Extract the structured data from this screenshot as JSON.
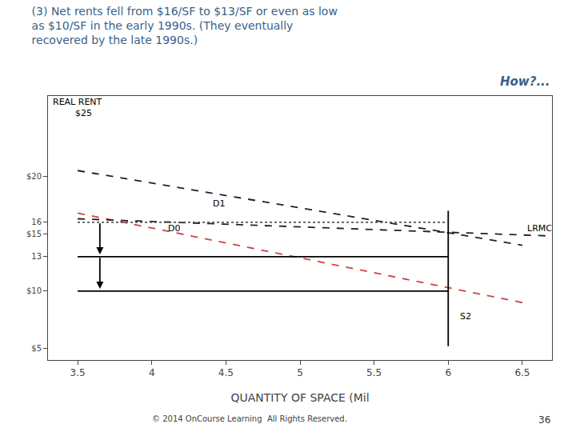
{
  "chart_data": {
    "type": "line",
    "title": "(3) Net rents fell from $16/SF to $13/SF or even as low\nas $10/SF in the early 1990s. (They eventually\nrecovered by the late 1990s.)",
    "title_color": "#3A5F8A",
    "subtitle": "How?...",
    "footer": "© 2014 OnCourse Learning  All Rights Reserved.",
    "page": "36",
    "x_label": "QUANTITY OF SPACE (Mil",
    "xlim": [
      3.3,
      6.7
    ],
    "ylim": [
      4,
      27
    ],
    "xticks": [
      3.5,
      4,
      4.5,
      5,
      5.5,
      6,
      6.5
    ],
    "yticks": [
      {
        "value": 5,
        "label": "$5"
      },
      {
        "value": 10,
        "label": "$10"
      },
      13,
      {
        "value": 15,
        "label": "$15"
      },
      16,
      {
        "value": 20,
        "label": "$20"
      }
    ],
    "grid": false,
    "series": [
      {
        "name": "D1",
        "color": "#222222",
        "line_style": "dashed",
        "x": [
          3.5,
          6.5
        ],
        "values": [
          20.5,
          14.0
        ]
      },
      {
        "name": "D0",
        "color": "#CC4444",
        "line_style": "dashed",
        "x": [
          3.5,
          6.5
        ],
        "values": [
          16.8,
          9.0
        ]
      },
      {
        "name": "LRMC",
        "color": "#222222",
        "line_style": "dashed",
        "x": [
          3.5,
          6.7
        ],
        "values": [
          16.3,
          14.8
        ]
      },
      {
        "name": "S2",
        "color": "#000000",
        "line_style": "solid",
        "x": [
          6.0,
          6.0
        ],
        "values": [
          5.2,
          17.0
        ]
      },
      {
        "color": "#555555",
        "line_style": "dotted",
        "x": [
          3.5,
          6.0
        ],
        "values": [
          16,
          16
        ]
      },
      {
        "color": "#000000",
        "line_style": "solid",
        "x": [
          3.5,
          6.0
        ],
        "values": [
          13,
          13
        ]
      },
      {
        "color": "#000000",
        "line_style": "solid",
        "x": [
          3.5,
          6.0
        ],
        "values": [
          10,
          10
        ]
      }
    ],
    "arrows": [
      {
        "x": 3.65,
        "y_start": 16,
        "y_end": 13.2,
        "color": "#000000"
      },
      {
        "x": 3.65,
        "y_start": 13,
        "y_end": 10.2,
        "color": "#000000"
      }
    ],
    "annotations": [
      {
        "text": "D1",
        "x": 4.4,
        "y": 17.6
      },
      {
        "text": "D0",
        "x": 4.1,
        "y": 15.5
      },
      {
        "text": "LRMC",
        "x": 6.52,
        "y": 15.5
      },
      {
        "text": "S2",
        "x": 6.07,
        "y": 7.8
      },
      {
        "text": "REAL RENT",
        "x": 3.32,
        "y": 26.5
      },
      {
        "text": "$25",
        "x": 3.47,
        "y": 25.5
      }
    ]
  }
}
